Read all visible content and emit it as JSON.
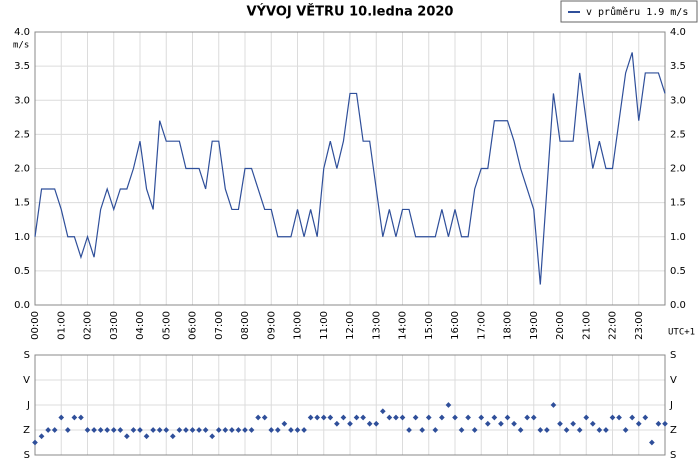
{
  "chart_data": [
    {
      "type": "line",
      "title": "VÝVOJ VĚTRU  10.ledna 2020",
      "ylabel": "m/s",
      "xlabel": "UTC+1",
      "x": [
        0,
        0.25,
        0.5,
        0.75,
        1,
        1.25,
        1.5,
        1.75,
        2,
        2.25,
        2.5,
        2.75,
        3,
        3.25,
        3.5,
        3.75,
        4,
        4.25,
        4.5,
        4.75,
        5,
        5.25,
        5.5,
        5.75,
        6,
        6.25,
        6.5,
        6.75,
        7,
        7.25,
        7.5,
        7.75,
        8,
        8.25,
        8.5,
        8.75,
        9,
        9.25,
        9.5,
        9.75,
        10,
        10.25,
        10.5,
        10.75,
        11,
        11.25,
        11.5,
        11.75,
        12,
        12.25,
        12.5,
        12.75,
        13,
        13.25,
        13.5,
        13.75,
        14,
        14.25,
        14.5,
        14.75,
        15,
        15.25,
        15.5,
        15.75,
        16,
        16.25,
        16.5,
        16.75,
        17,
        17.25,
        17.5,
        17.75,
        18,
        18.25,
        18.5,
        18.75,
        19,
        19.25,
        19.5,
        19.75,
        20,
        20.25,
        20.5,
        20.75,
        21,
        21.25,
        21.5,
        21.75,
        22,
        22.25,
        22.5,
        22.75,
        23,
        23.25,
        23.5,
        23.75,
        24
      ],
      "series": [
        {
          "name": "v průměru 1.9 m/s",
          "color": "#2f4f9a",
          "values": [
            1.0,
            1.7,
            1.7,
            1.7,
            1.4,
            1.0,
            1.0,
            0.7,
            1.0,
            0.7,
            1.4,
            1.7,
            1.4,
            1.7,
            1.7,
            2.0,
            2.4,
            1.7,
            1.4,
            2.7,
            2.4,
            2.4,
            2.4,
            2.0,
            2.0,
            2.0,
            1.7,
            2.4,
            2.4,
            1.7,
            1.4,
            1.4,
            2.0,
            2.0,
            1.7,
            1.4,
            1.4,
            1.0,
            1.0,
            1.0,
            1.4,
            1.0,
            1.4,
            1.0,
            2.0,
            2.4,
            2.0,
            2.4,
            3.1,
            3.1,
            2.4,
            2.4,
            1.7,
            1.0,
            1.4,
            1.0,
            1.4,
            1.4,
            1.0,
            1.0,
            1.0,
            1.0,
            1.4,
            1.0,
            1.4,
            1.0,
            1.0,
            1.7,
            2.0,
            2.0,
            2.7,
            2.7,
            2.7,
            2.4,
            2.0,
            1.7,
            1.4,
            0.3,
            1.7,
            3.1,
            2.4,
            2.4,
            2.4,
            3.4,
            2.7,
            2.0,
            2.4,
            2.0,
            2.0,
            2.7,
            3.4,
            3.7,
            2.7,
            3.4,
            3.4,
            3.4,
            3.1
          ]
        }
      ],
      "xlim": [
        0,
        24
      ],
      "xticks": [
        {
          "value": 0,
          "label": "00:00"
        },
        {
          "value": 1,
          "label": "01:00"
        },
        {
          "value": 2,
          "label": "02:00"
        },
        {
          "value": 3,
          "label": "03:00"
        },
        {
          "value": 4,
          "label": "04:00"
        },
        {
          "value": 5,
          "label": "05:00"
        },
        {
          "value": 6,
          "label": "06:00"
        },
        {
          "value": 7,
          "label": "07:00"
        },
        {
          "value": 8,
          "label": "08:00"
        },
        {
          "value": 9,
          "label": "09:00"
        },
        {
          "value": 10,
          "label": "10:00"
        },
        {
          "value": 11,
          "label": "11:00"
        },
        {
          "value": 12,
          "label": "12:00"
        },
        {
          "value": 13,
          "label": "13:00"
        },
        {
          "value": 14,
          "label": "14:00"
        },
        {
          "value": 15,
          "label": "15:00"
        },
        {
          "value": 16,
          "label": "16:00"
        },
        {
          "value": 17,
          "label": "17:00"
        },
        {
          "value": 18,
          "label": "18:00"
        },
        {
          "value": 19,
          "label": "19:00"
        },
        {
          "value": 20,
          "label": "20:00"
        },
        {
          "value": 21,
          "label": "21:00"
        },
        {
          "value": 22,
          "label": "22:00"
        },
        {
          "value": 23,
          "label": "23:00"
        }
      ],
      "ylim": [
        0,
        4
      ],
      "yticks": [
        {
          "value": 0,
          "label": "0.0"
        },
        0.5,
        {
          "value": 1,
          "label": "1.0"
        },
        1.5,
        {
          "value": 2,
          "label": "2.0"
        },
        2.5,
        {
          "value": 3,
          "label": "3.0"
        },
        3.5,
        {
          "value": 4,
          "label": "4.0"
        }
      ],
      "grid": true,
      "legend": "top-right"
    },
    {
      "type": "scatter",
      "color": "#2f4f9a",
      "x": [
        0,
        0.25,
        0.5,
        0.75,
        1,
        1.25,
        1.5,
        1.75,
        2,
        2.25,
        2.5,
        2.75,
        3,
        3.25,
        3.5,
        3.75,
        4,
        4.25,
        4.5,
        4.75,
        5,
        5.25,
        5.5,
        5.75,
        6,
        6.25,
        6.5,
        6.75,
        7,
        7.25,
        7.5,
        7.75,
        8,
        8.25,
        8.5,
        8.75,
        9,
        9.25,
        9.5,
        9.75,
        10,
        10.25,
        10.5,
        10.75,
        11,
        11.25,
        11.5,
        11.75,
        12,
        12.25,
        12.5,
        12.75,
        13,
        13.25,
        13.5,
        13.75,
        14,
        14.25,
        14.5,
        14.75,
        15,
        15.25,
        15.5,
        15.75,
        16,
        16.25,
        16.5,
        16.75,
        17,
        17.25,
        17.5,
        17.75,
        18,
        18.25,
        18.5,
        18.75,
        19,
        19.25,
        19.5,
        19.75,
        20,
        20.25,
        20.5,
        20.75,
        21,
        21.25,
        21.5,
        21.75,
        22,
        22.25,
        22.5,
        22.75,
        23,
        23.25,
        23.5,
        23.75,
        24
      ],
      "values": [
        315,
        292.5,
        270,
        270,
        225,
        270,
        225,
        225,
        270,
        270,
        270,
        270,
        270,
        270,
        292.5,
        270,
        270,
        292.5,
        270,
        270,
        270,
        292.5,
        270,
        270,
        270,
        270,
        270,
        292.5,
        270,
        270,
        270,
        270,
        270,
        270,
        225,
        225,
        270,
        270,
        247.5,
        270,
        270,
        270,
        225,
        225,
        225,
        225,
        247.5,
        225,
        247.5,
        225,
        225,
        247.5,
        247.5,
        202.5,
        225,
        225,
        225,
        270,
        225,
        270,
        225,
        270,
        225,
        180,
        225,
        270,
        225,
        270,
        225,
        247.5,
        225,
        247.5,
        225,
        247.5,
        270,
        225,
        225,
        270,
        270,
        180,
        247.5,
        270,
        247.5,
        270,
        225,
        247.5,
        270,
        270,
        225,
        225,
        270,
        225,
        247.5,
        225,
        315,
        247.5,
        247.5
      ],
      "xlim": [
        0,
        24
      ],
      "ylim": [
        360,
        0
      ],
      "yticks": [
        {
          "value": 0,
          "label": "S"
        },
        {
          "value": 90,
          "label": "V"
        },
        {
          "value": 180,
          "label": "J"
        },
        {
          "value": 270,
          "label": "Z"
        },
        {
          "value": 360,
          "label": "S"
        }
      ],
      "grid": true
    }
  ]
}
